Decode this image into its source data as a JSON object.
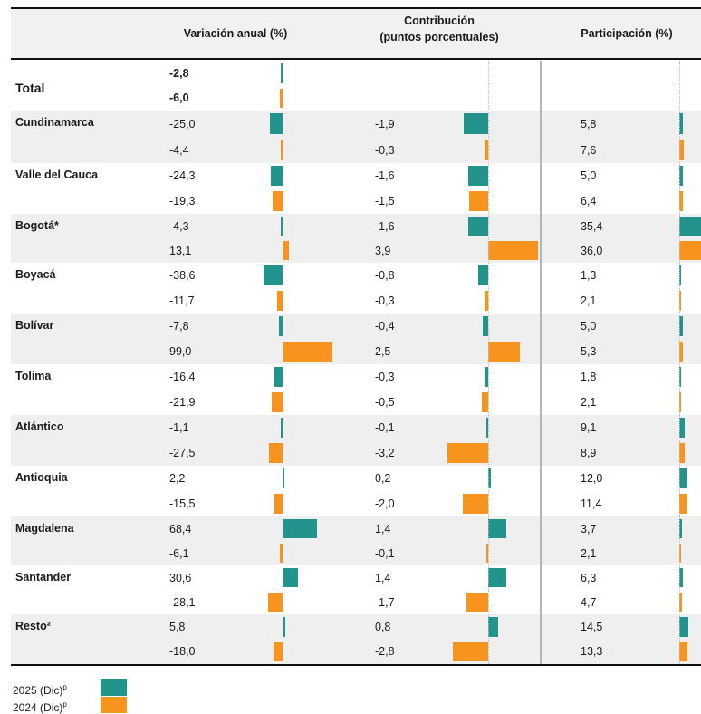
{
  "chart_data": {
    "type": "bar",
    "columns": [
      {
        "key": "var",
        "label": "Variación anual (%)"
      },
      {
        "key": "contrib",
        "label": "Contribución\n(puntos porcentuales)"
      },
      {
        "key": "part",
        "label": "Participación (%)"
      }
    ],
    "series": [
      {
        "name": "2025 (Dic)",
        "superscript": "p",
        "color": "#22948c"
      },
      {
        "name": "2024 (Dic)",
        "superscript": "p",
        "color": "#f7941d"
      }
    ],
    "rows": [
      {
        "name": "Total",
        "var": [
          -2.8,
          -6.0
        ],
        "contrib": [
          null,
          null
        ],
        "part": [
          null,
          null
        ],
        "var_text": [
          "-2,8",
          "-6,0"
        ],
        "contrib_text": [
          "",
          ""
        ],
        "part_text": [
          "",
          ""
        ]
      },
      {
        "name": "Cundinamarca",
        "var": [
          -25.0,
          -4.4
        ],
        "contrib": [
          -1.9,
          -0.3
        ],
        "part": [
          5.8,
          7.6
        ],
        "var_text": [
          "-25,0",
          "-4,4"
        ],
        "contrib_text": [
          "-1,9",
          "-0,3"
        ],
        "part_text": [
          "5,8",
          "7,6"
        ]
      },
      {
        "name": "Valle del Cauca",
        "var": [
          -24.3,
          -19.3
        ],
        "contrib": [
          -1.6,
          -1.5
        ],
        "part": [
          5.0,
          6.4
        ],
        "var_text": [
          "-24,3",
          "-19,3"
        ],
        "contrib_text": [
          "-1,6",
          "-1,5"
        ],
        "part_text": [
          "5,0",
          "6,4"
        ]
      },
      {
        "name": "Bogotá*",
        "var": [
          -4.3,
          13.1
        ],
        "contrib": [
          -1.6,
          3.9
        ],
        "part": [
          35.4,
          36.0
        ],
        "var_text": [
          "-4,3",
          "13,1"
        ],
        "contrib_text": [
          "-1,6",
          "3,9"
        ],
        "part_text": [
          "35,4",
          "36,0"
        ]
      },
      {
        "name": "Boyacá",
        "var": [
          -38.6,
          -11.7
        ],
        "contrib": [
          -0.8,
          -0.3
        ],
        "part": [
          1.3,
          2.1
        ],
        "var_text": [
          "-38,6",
          "-11,7"
        ],
        "contrib_text": [
          "-0,8",
          "-0,3"
        ],
        "part_text": [
          "1,3",
          "2,1"
        ]
      },
      {
        "name": "Bolívar",
        "var": [
          -7.8,
          99.0
        ],
        "contrib": [
          -0.4,
          2.5
        ],
        "part": [
          5.0,
          5.3
        ],
        "var_text": [
          "-7,8",
          "99,0"
        ],
        "contrib_text": [
          "-0,4",
          "2,5"
        ],
        "part_text": [
          "5,0",
          "5,3"
        ]
      },
      {
        "name": "Tolima",
        "var": [
          -16.4,
          -21.9
        ],
        "contrib": [
          -0.3,
          -0.5
        ],
        "part": [
          1.8,
          2.1
        ],
        "var_text": [
          "-16,4",
          "-21,9"
        ],
        "contrib_text": [
          "-0,3",
          "-0,5"
        ],
        "part_text": [
          "1,8",
          "2,1"
        ]
      },
      {
        "name": "Atlántico",
        "var": [
          -1.1,
          -27.5
        ],
        "contrib": [
          -0.1,
          -3.2
        ],
        "part": [
          9.1,
          8.9
        ],
        "var_text": [
          "-1,1",
          "-27,5"
        ],
        "contrib_text": [
          "-0,1",
          "-3,2"
        ],
        "part_text": [
          "9,1",
          "8,9"
        ]
      },
      {
        "name": "Antioquia",
        "var": [
          2.2,
          -15.5
        ],
        "contrib": [
          0.2,
          -2.0
        ],
        "part": [
          12.0,
          11.4
        ],
        "var_text": [
          "2,2",
          "-15,5"
        ],
        "contrib_text": [
          "0,2",
          "-2,0"
        ],
        "part_text": [
          "12,0",
          "11,4"
        ]
      },
      {
        "name": "Magdalena",
        "var": [
          68.4,
          -6.1
        ],
        "contrib": [
          1.4,
          -0.1
        ],
        "part": [
          3.7,
          2.1
        ],
        "var_text": [
          "68,4",
          "-6,1"
        ],
        "contrib_text": [
          "1,4",
          "-0,1"
        ],
        "part_text": [
          "3,7",
          "2,1"
        ]
      },
      {
        "name": "Santander",
        "var": [
          30.6,
          -28.1
        ],
        "contrib": [
          1.4,
          -1.7
        ],
        "part": [
          6.3,
          4.7
        ],
        "var_text": [
          "30,6",
          "-28,1"
        ],
        "contrib_text": [
          "1,4",
          "-1,7"
        ],
        "part_text": [
          "6,3",
          "4,7"
        ]
      },
      {
        "name": "Resto²",
        "var": [
          5.8,
          -18.0
        ],
        "contrib": [
          0.8,
          -2.8
        ],
        "part": [
          14.5,
          13.3
        ],
        "var_text": [
          "5,8",
          "-18,0"
        ],
        "contrib_text": [
          "0,8",
          "-2,8"
        ],
        "part_text": [
          "14,5",
          "13,3"
        ]
      }
    ]
  },
  "legend": {
    "items": [
      {
        "label": "2025 (Dic)",
        "sup": "p",
        "color": "#22948c"
      },
      {
        "label": "2024 (Dic)",
        "sup": "p",
        "color": "#f7941d"
      }
    ]
  }
}
